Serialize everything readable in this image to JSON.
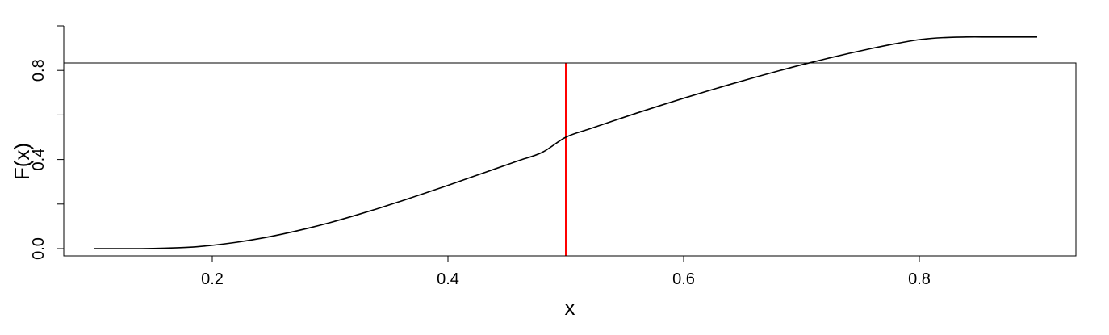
{
  "chart_data": {
    "type": "line",
    "title": "",
    "xlabel": "x",
    "ylabel": "F(x)",
    "xlim": [
      0.1,
      0.9
    ],
    "ylim": [
      0.0,
      1.0
    ],
    "x_ticks": [
      0.2,
      0.4,
      0.6,
      0.8
    ],
    "x_tick_labels": [
      "0.2",
      "0.4",
      "0.6",
      "0.8"
    ],
    "y_ticks": [
      0.0,
      0.2,
      0.4,
      0.6,
      0.8,
      1.0
    ],
    "y_tick_labels": [
      "0.0",
      "",
      "0.4",
      "",
      "0.8",
      ""
    ],
    "grid": false,
    "legend": "none",
    "series": [
      {
        "color": "#000000",
        "x": [
          0.1,
          0.12,
          0.14,
          0.16,
          0.18,
          0.2,
          0.22,
          0.24,
          0.26,
          0.28,
          0.3,
          0.32,
          0.34,
          0.36,
          0.38,
          0.4,
          0.42,
          0.44,
          0.46,
          0.48,
          0.5,
          0.52,
          0.54,
          0.56,
          0.58,
          0.6,
          0.62,
          0.64,
          0.66,
          0.68,
          0.7,
          0.72,
          0.74,
          0.76,
          0.78,
          0.8,
          0.82,
          0.84,
          0.86,
          0.88,
          0.9
        ],
        "y": [
          0.0,
          0.0,
          0.0,
          0.002,
          0.006,
          0.015,
          0.028,
          0.045,
          0.066,
          0.09,
          0.117,
          0.147,
          0.179,
          0.213,
          0.248,
          0.284,
          0.321,
          0.358,
          0.395,
          0.432,
          0.5,
          0.537,
          0.573,
          0.608,
          0.642,
          0.675,
          0.707,
          0.738,
          0.768,
          0.797,
          0.825,
          0.851,
          0.876,
          0.899,
          0.92,
          0.938,
          0.947,
          0.95,
          0.95,
          0.95,
          0.95
        ]
      }
    ],
    "reference_lines": [
      {
        "orientation": "vertical",
        "x": 0.5,
        "color": "#ff0000"
      }
    ]
  }
}
